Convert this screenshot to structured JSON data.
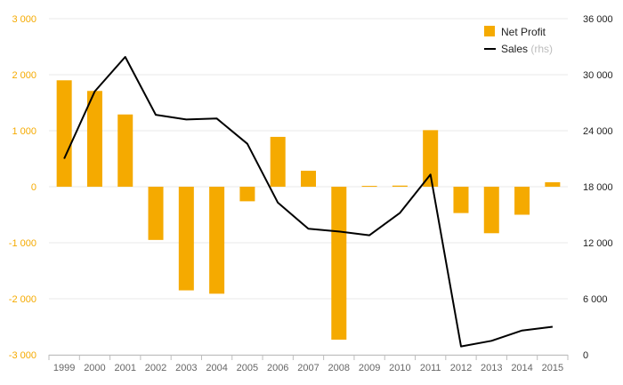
{
  "chart_data": {
    "type": "bar+line",
    "categories": [
      "1999",
      "2000",
      "2001",
      "2002",
      "2003",
      "2004",
      "2005",
      "2006",
      "2007",
      "2008",
      "2009",
      "2010",
      "2011",
      "2012",
      "2013",
      "2014",
      "2015"
    ],
    "series": [
      {
        "name": "Net Profit",
        "type": "bar",
        "axis": "left",
        "color": "#f5aa00",
        "values": [
          1900,
          1710,
          1290,
          -950,
          -1850,
          -1910,
          -260,
          890,
          285,
          -2730,
          15,
          20,
          1010,
          -470,
          -830,
          -500,
          80
        ]
      },
      {
        "name": "Sales",
        "type": "line",
        "axis": "right",
        "color": "#000000",
        "values": [
          21000,
          28200,
          31900,
          25700,
          25200,
          25300,
          22600,
          16300,
          13500,
          13200,
          12800,
          15200,
          19300,
          900,
          1500,
          2600,
          3000
        ]
      }
    ],
    "y_left": {
      "min": -3000,
      "max": 3000,
      "ticks": [
        -3000,
        -2000,
        -1000,
        0,
        1000,
        2000,
        3000
      ],
      "tick_labels": [
        "-3 000",
        "-2 000",
        "-1 000",
        "0",
        "1 000",
        "2 000",
        "3 000"
      ],
      "color": "#f5aa00"
    },
    "y_right": {
      "min": 0,
      "max": 36000,
      "ticks": [
        0,
        6000,
        12000,
        18000,
        24000,
        30000,
        36000
      ],
      "tick_labels": [
        "0",
        "6 000",
        "12 000",
        "18 000",
        "24 000",
        "30 000",
        "36 000"
      ],
      "color": "#222222"
    },
    "legend": {
      "position": "top-right",
      "items": [
        {
          "label": "Net Profit",
          "suffix": "",
          "kind": "bar"
        },
        {
          "label": "Sales",
          "suffix": "(rhs)",
          "kind": "line"
        }
      ]
    },
    "grid": {
      "horizontal": true,
      "color": "#e8e8e8"
    },
    "title": "",
    "xlabel": "",
    "ylabel": ""
  }
}
